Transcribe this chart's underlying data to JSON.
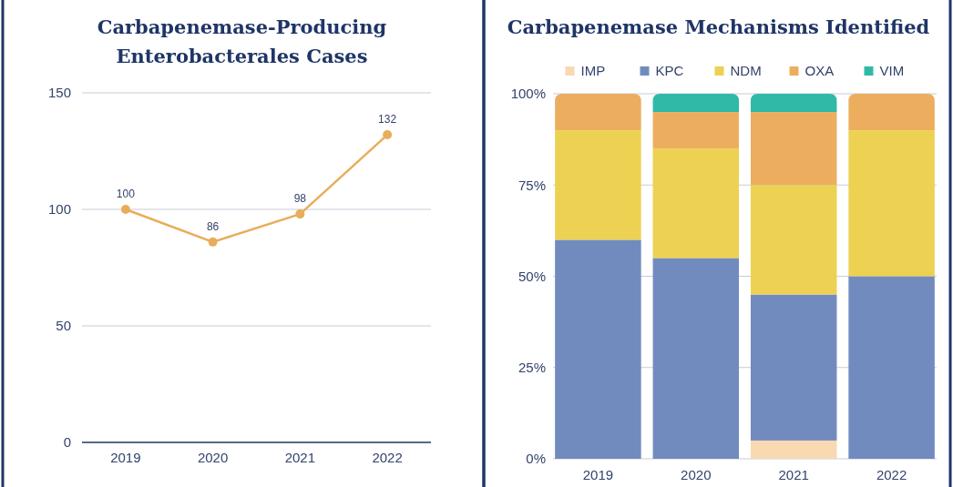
{
  "chart_data": [
    {
      "type": "line",
      "title": "Carbapenemase-Producing Enterobacterales Cases",
      "categories": [
        "2019",
        "2020",
        "2021",
        "2022"
      ],
      "series": [
        {
          "color": "#e8ad5a",
          "values": [
            100,
            86,
            98,
            132
          ]
        }
      ],
      "ylim": [
        0,
        150
      ],
      "yticks": [
        0,
        50,
        100,
        150
      ],
      "grid": "y",
      "marker": "circle",
      "data_labels": true
    },
    {
      "type": "bar",
      "stacked": true,
      "title": "Carbapenemase Mechanisms Identified",
      "categories": [
        "2019",
        "2020",
        "2021",
        "2022"
      ],
      "series": [
        {
          "name": "IMP",
          "color": "#f8d9b2",
          "values": [
            0,
            0,
            5,
            0
          ]
        },
        {
          "name": "KPC",
          "color": "#728bbf",
          "values": [
            60,
            55,
            40,
            50
          ]
        },
        {
          "name": "NDM",
          "color": "#edd152",
          "values": [
            30,
            30,
            30,
            40
          ]
        },
        {
          "name": "OXA",
          "color": "#ecae5e",
          "values": [
            10,
            10,
            20,
            10
          ]
        },
        {
          "name": "VIM",
          "color": "#2fbaa8",
          "values": [
            0,
            5,
            5,
            0
          ]
        }
      ],
      "ylim": [
        0,
        100
      ],
      "yticks": [
        {
          "value": 0,
          "label": "0%"
        },
        {
          "value": 25,
          "label": "25%"
        },
        {
          "value": 50,
          "label": "50%"
        },
        {
          "value": 75,
          "label": "75%"
        },
        {
          "value": 100,
          "label": "100%"
        }
      ],
      "grid": "y",
      "legend": "top"
    }
  ]
}
